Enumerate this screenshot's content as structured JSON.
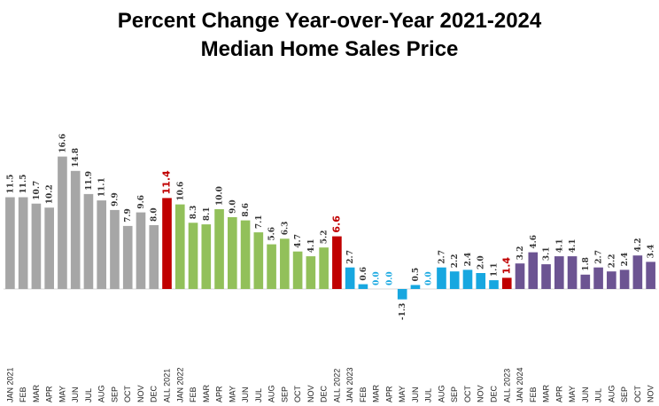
{
  "chart_data": {
    "type": "bar",
    "title": "Percent Change Year-over-Year 2021-2024",
    "subtitle": "Median Home Sales Price",
    "xlabel": "",
    "ylabel": "",
    "ylim": [
      -2,
      18
    ],
    "grid": false,
    "legend": "none",
    "categories": [
      "JAN 2021",
      "FEB",
      "MAR",
      "APR",
      "MAY",
      "JUN",
      "JUL",
      "AUG",
      "SEP",
      "OCT",
      "NOV",
      "DEC",
      "ALL 2021",
      "JAN 2022",
      "FEB",
      "MAR",
      "APR",
      "MAY",
      "JUN",
      "JUL",
      "AUG",
      "SEP",
      "OCT",
      "NOV",
      "DEC",
      "ALL 2022",
      "JAN 2023",
      "FEB",
      "MAR",
      "APR",
      "MAY",
      "JUN",
      "JUL",
      "AUG",
      "SEP",
      "OCT",
      "NOV",
      "DEC",
      "ALL 2023",
      "JAN 2024",
      "FEB",
      "MAR",
      "APR",
      "MAY",
      "JUN",
      "JUL",
      "AUG",
      "SEP",
      "OCT",
      "NOV"
    ],
    "values": [
      11.5,
      11.5,
      10.7,
      10.2,
      16.6,
      14.8,
      11.9,
      11.1,
      9.9,
      7.9,
      9.6,
      8.0,
      11.4,
      10.6,
      8.3,
      8.1,
      10.0,
      9.0,
      8.6,
      7.1,
      5.6,
      6.3,
      4.7,
      4.1,
      5.2,
      6.6,
      2.7,
      0.6,
      0.0,
      0.0,
      -1.3,
      0.5,
      0.0,
      2.7,
      2.2,
      2.4,
      2.0,
      1.1,
      1.4,
      3.2,
      4.6,
      3.1,
      4.1,
      4.1,
      1.8,
      2.7,
      2.2,
      2.4,
      4.2,
      3.4
    ],
    "value_labels": [
      "11.5",
      "11.5",
      "10.7",
      "10.2",
      "16.6",
      "14.8",
      "11.9",
      "11.1",
      "9.9",
      "7.9",
      "9.6",
      "8.0",
      "11.4",
      "10.6",
      "8.3",
      "8.1",
      "10.0",
      "9.0",
      "8.6",
      "7.1",
      "5.6",
      "6.3",
      "4.7",
      "4.1",
      "5.2",
      "6.6",
      "2.7",
      "0.6",
      "0.0",
      "0.0",
      "-1.3",
      "0.5",
      "0.0",
      "2.7",
      "2.2",
      "2.4",
      "2.0",
      "1.1",
      "1.4",
      "3.2",
      "4.6",
      "3.1",
      "4.1",
      "4.1",
      "1.8",
      "2.7",
      "2.2",
      "2.4",
      "4.2",
      "3.4"
    ],
    "highlight_indices": [
      12,
      25,
      38
    ],
    "groups": [
      {
        "start": 0,
        "end": 11,
        "color": "#a6a6a6"
      },
      {
        "start": 13,
        "end": 24,
        "color": "#92c05a"
      },
      {
        "start": 26,
        "end": 37,
        "color": "#17a7e0"
      },
      {
        "start": 39,
        "end": 49,
        "color": "#6c5492"
      }
    ],
    "highlight_color": "#c00000",
    "blue_zero_label_color": "#17a7e0"
  }
}
